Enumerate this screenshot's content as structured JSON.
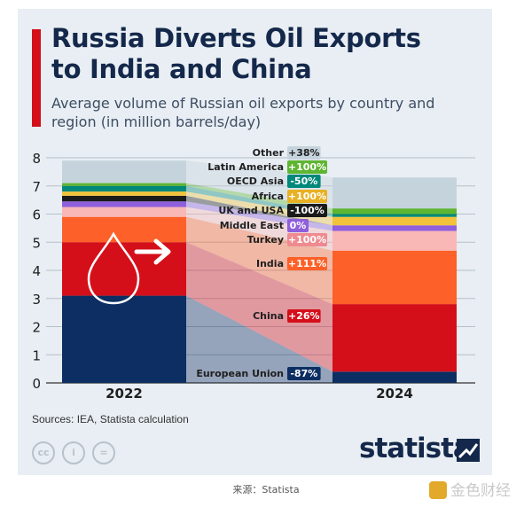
{
  "header": {
    "title": "Russia Diverts Oil Exports\nto India and China",
    "subtitle": "Average volume of Russian oil exports by country and region (in million barrels/day)"
  },
  "footer": {
    "source": "Sources: IEA, Statista calculation",
    "license_icons": [
      "cc-icon",
      "person-icon",
      "equals-icon"
    ],
    "logo": "statista",
    "caption": "来源：Statista",
    "watermark": "金色财经"
  },
  "colors": {
    "accent": "#d40f1a",
    "title": "#14284b",
    "background": "#e8eef3"
  },
  "chart_data": {
    "type": "bar",
    "stacked": true,
    "categories": [
      "2022",
      "2024"
    ],
    "ylim": [
      0,
      8
    ],
    "yticks": [
      0,
      1,
      2,
      3,
      4,
      5,
      6,
      7,
      8
    ],
    "grid": true,
    "legend": "inline-labels-between-bars",
    "series": [
      {
        "name": "European Union",
        "change": "-87%",
        "values": [
          3.1,
          0.4
        ],
        "color": "#0c2e62",
        "label_color": "#0c2e62"
      },
      {
        "name": "China",
        "change": "+26%",
        "values": [
          1.9,
          2.4
        ],
        "color": "#d40f1a",
        "label_color": "#d40f1a"
      },
      {
        "name": "India",
        "change": "+111%",
        "values": [
          0.9,
          1.9
        ],
        "color": "#fd6028",
        "label_color": "#fd6028"
      },
      {
        "name": "Turkey",
        "change": "+100%",
        "values": [
          0.35,
          0.7
        ],
        "color": "#f9b7b6",
        "label_color": "#ef8a90"
      },
      {
        "name": "Middle East",
        "change": "0%",
        "values": [
          0.2,
          0.2
        ],
        "color": "#8f5fdc",
        "label_color": "#8f5fdc"
      },
      {
        "name": "UK and USA",
        "change": "-100%",
        "values": [
          0.2,
          0.0
        ],
        "color": "#1a1a1a",
        "label_color": "#1a1a1a"
      },
      {
        "name": "Africa",
        "change": "+100%",
        "values": [
          0.15,
          0.3
        ],
        "color": "#f3c23b",
        "label_color": "#e8b123"
      },
      {
        "name": "OECD Asia",
        "change": "-50%",
        "values": [
          0.2,
          0.1
        ],
        "color": "#00887a",
        "label_color": "#00887a"
      },
      {
        "name": "Latin America",
        "change": "+100%",
        "values": [
          0.1,
          0.2
        ],
        "color": "#5eb531",
        "label_color": "#5eb531"
      },
      {
        "name": "Other",
        "change": "+38%",
        "values": [
          0.8,
          1.1
        ],
        "color": "#c5d3dc",
        "label_color": "#c5d3dc",
        "dark_text": true
      }
    ]
  }
}
